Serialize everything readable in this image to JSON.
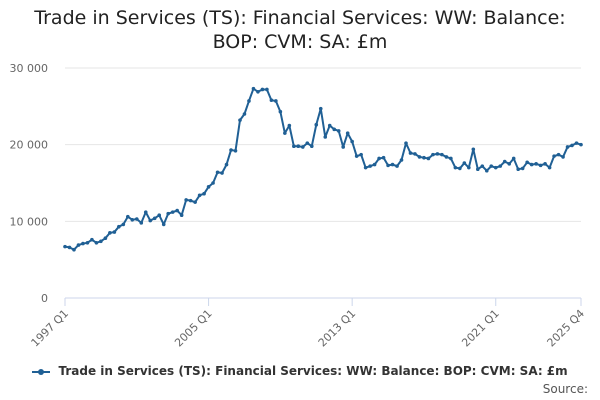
{
  "colors": {
    "series": "#206095",
    "grid": "#e6e6e6",
    "axis": "#ccd6eb",
    "tick_text": "#666666"
  },
  "chart_data": {
    "type": "line",
    "title_lines": [
      "Trade in Services (TS): Financial Services: WW: Balance:",
      "BOP: CVM: SA: £m"
    ],
    "xlabel": "",
    "ylabel": "",
    "ylim": [
      0,
      30000
    ],
    "yticks": [
      0,
      10000,
      20000,
      30000
    ],
    "ytick_labels": [
      "0",
      "10 000",
      "20 000",
      "30 000"
    ],
    "xtick_labels": [
      {
        "label": "1997 Q1",
        "index": 0
      },
      {
        "label": "2005 Q1",
        "index": 32
      },
      {
        "label": "2013 Q1",
        "index": 64
      },
      {
        "label": "2021 Q1",
        "index": 96
      },
      {
        "label": "2025 Q4",
        "index": 115
      }
    ],
    "grid": true,
    "legend_position": "bottom",
    "series": [
      {
        "name": "Trade in Services (TS): Financial Services: WW: Balance: BOP: CVM: SA: £m",
        "x_start": "1997 Q1",
        "x_end": "2025 Q4",
        "values": [
          6700,
          6600,
          6300,
          6900,
          7100,
          7200,
          7600,
          7200,
          7400,
          7800,
          8500,
          8600,
          9300,
          9600,
          10600,
          10200,
          10300,
          9800,
          11200,
          10100,
          10400,
          10800,
          9600,
          11000,
          11200,
          11400,
          10800,
          12800,
          12700,
          12500,
          13400,
          13600,
          14500,
          15000,
          16400,
          16300,
          17400,
          19300,
          19200,
          23200,
          24000,
          25700,
          27300,
          26900,
          27200,
          27200,
          25800,
          25700,
          24300,
          21500,
          22500,
          19800,
          19800,
          19700,
          20200,
          19800,
          22600,
          24700,
          21000,
          22500,
          22000,
          21800,
          19700,
          21500,
          20400,
          18500,
          18700,
          17000,
          17200,
          17400,
          18200,
          18300,
          17300,
          17400,
          17200,
          18000,
          20200,
          18900,
          18800,
          18400,
          18300,
          18200,
          18700,
          18800,
          18700,
          18400,
          18200,
          17000,
          16900,
          17600,
          17000,
          19400,
          16800,
          17200,
          16600,
          17200,
          17000,
          17200,
          17800,
          17500,
          18200,
          16800,
          16900,
          17700,
          17400,
          17500,
          17300,
          17500,
          17000,
          18500,
          18700,
          18400,
          19700,
          19900,
          20200,
          20000
        ]
      }
    ]
  },
  "source_label": "Source:"
}
